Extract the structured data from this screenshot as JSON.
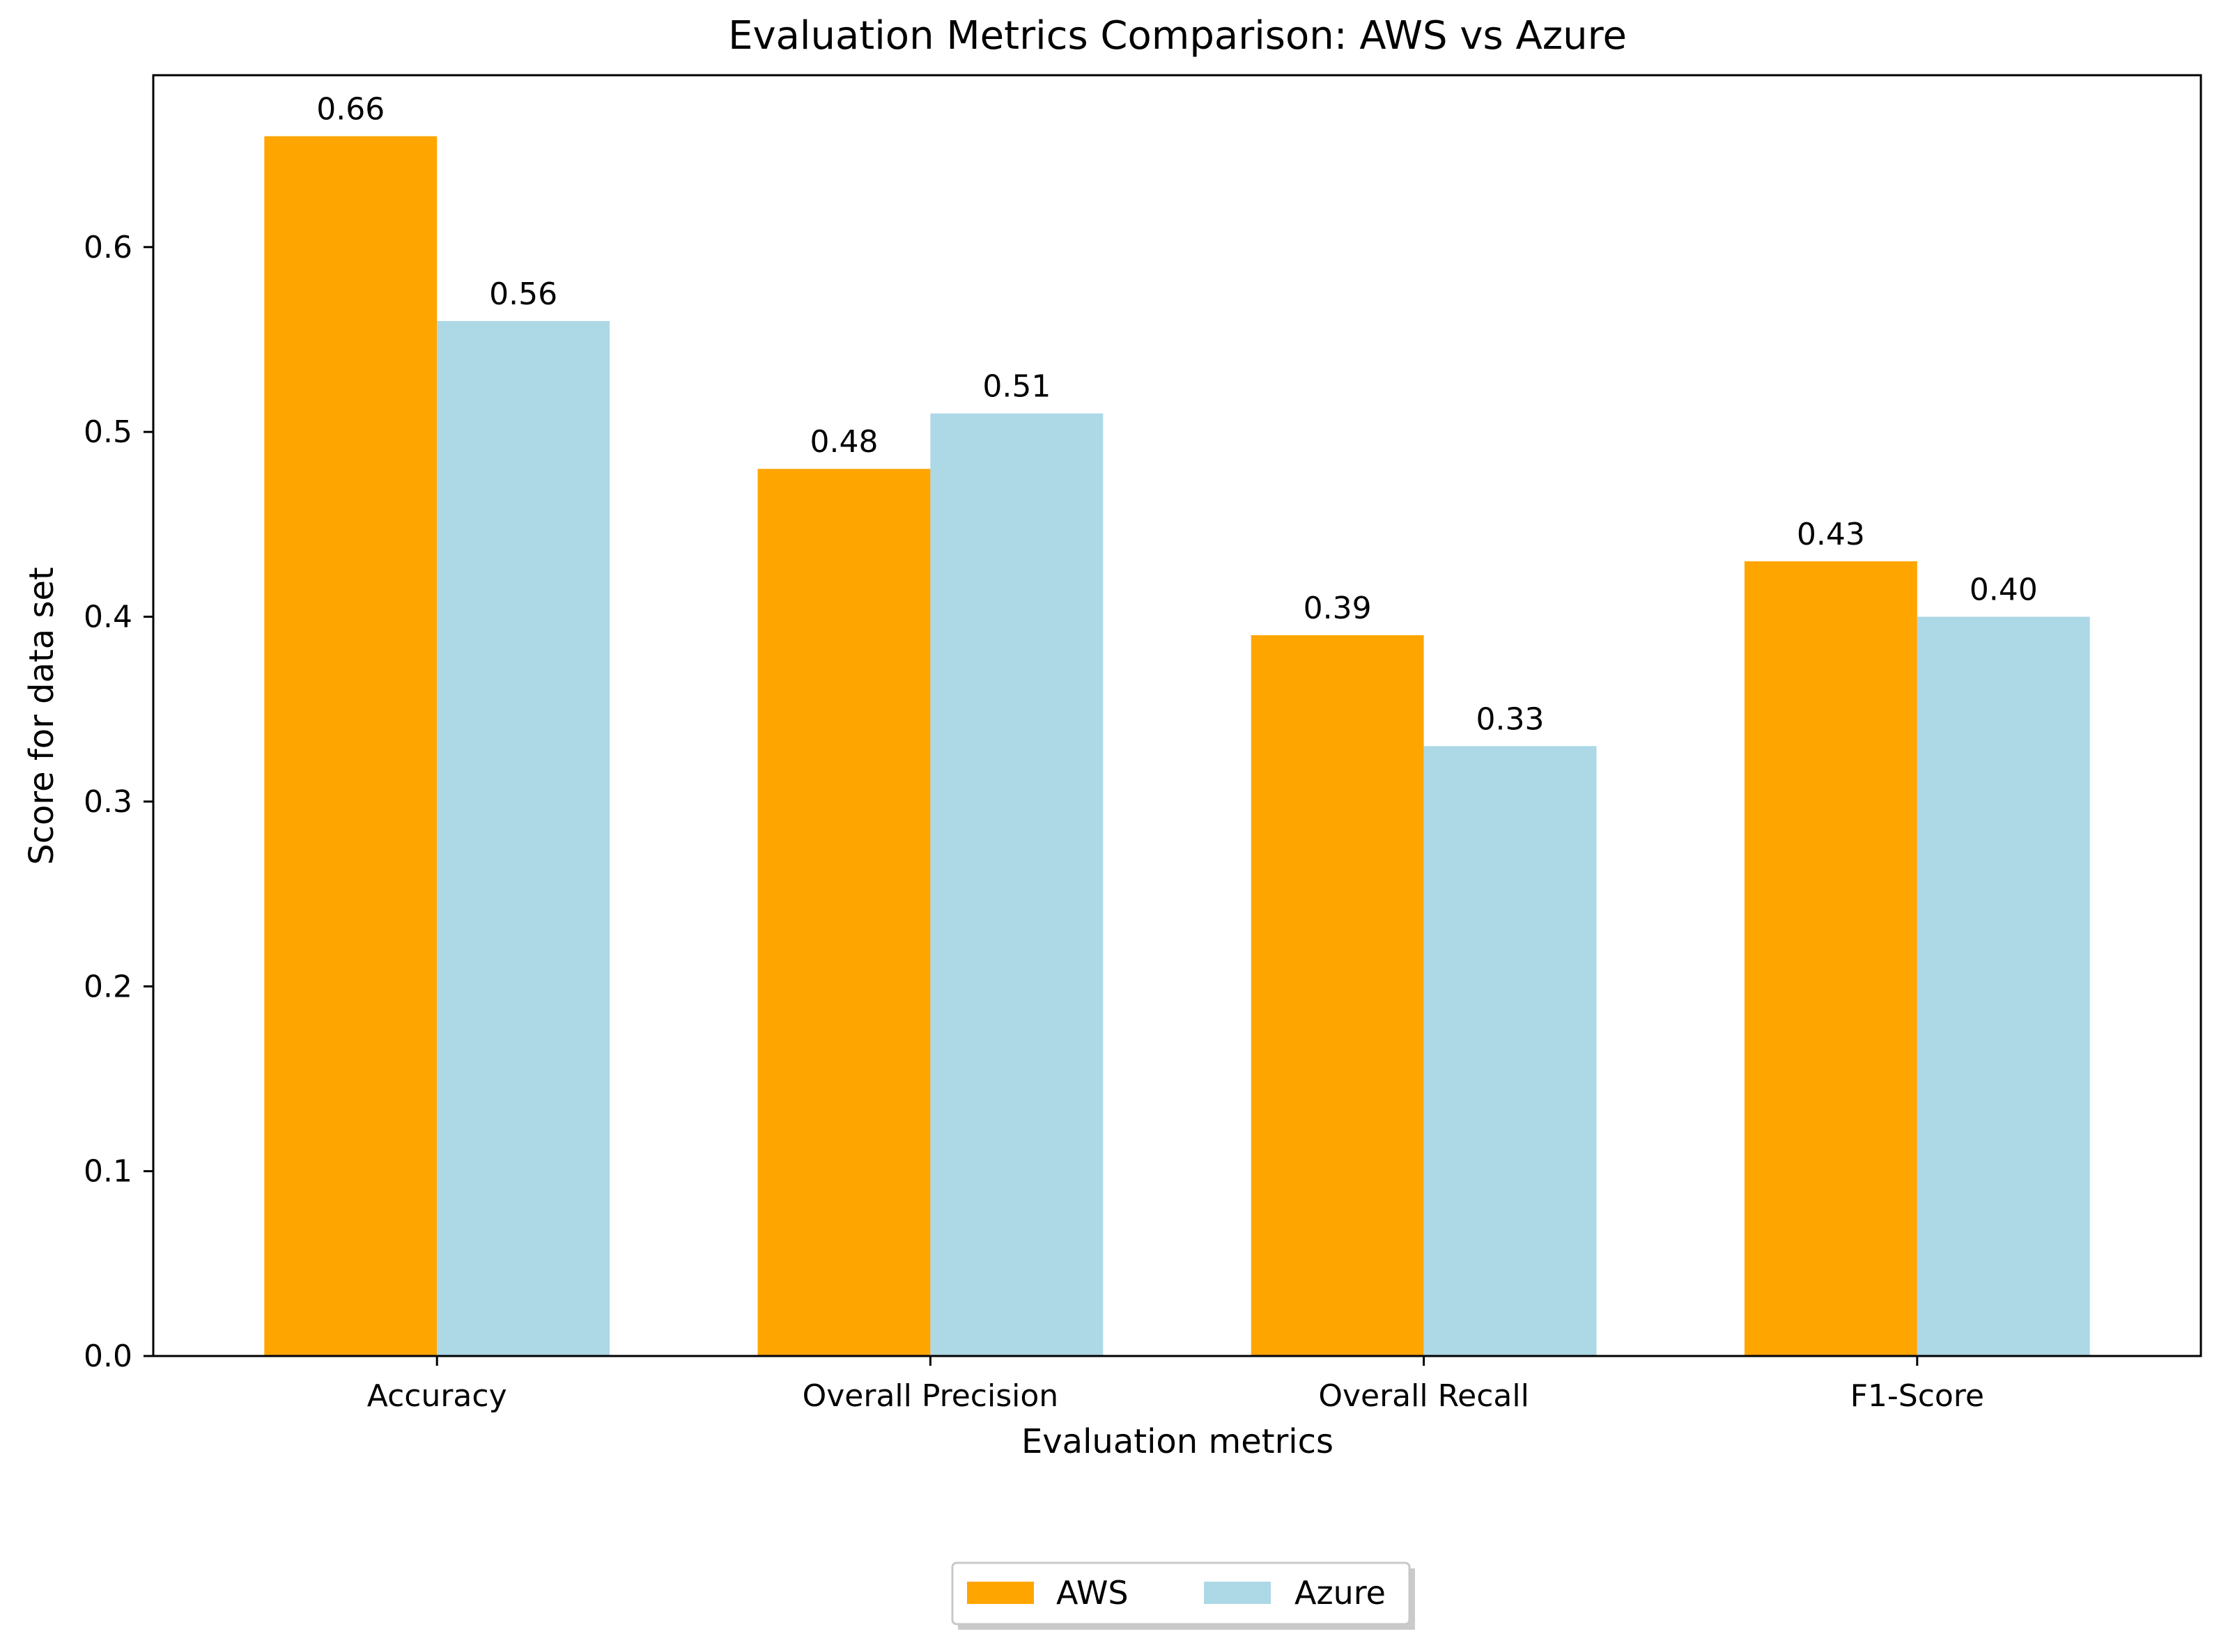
{
  "chart_data": {
    "type": "bar",
    "title": "Evaluation Metrics Comparison: AWS vs Azure",
    "xlabel": "Evaluation metrics",
    "ylabel": "Score for data set",
    "categories": [
      "Accuracy",
      "Overall Precision",
      "Overall Recall",
      "F1-Score"
    ],
    "series": [
      {
        "name": "AWS",
        "values": [
          0.66,
          0.48,
          0.39,
          0.43
        ],
        "labels": [
          "0.66",
          "0.48",
          "0.39",
          "0.43"
        ],
        "color": "#ffa500"
      },
      {
        "name": "Azure",
        "values": [
          0.56,
          0.51,
          0.33,
          0.4
        ],
        "labels": [
          "0.56",
          "0.51",
          "0.33",
          "0.40"
        ],
        "color": "#add8e6"
      }
    ],
    "ylim": [
      0,
      0.693
    ],
    "yticks": [
      0.0,
      0.1,
      0.2,
      0.3,
      0.4,
      0.5,
      0.6
    ],
    "ytick_labels": [
      "0.0",
      "0.1",
      "0.2",
      "0.3",
      "0.4",
      "0.5",
      "0.6"
    ],
    "grid": false,
    "legend_position": "bottom-center"
  }
}
